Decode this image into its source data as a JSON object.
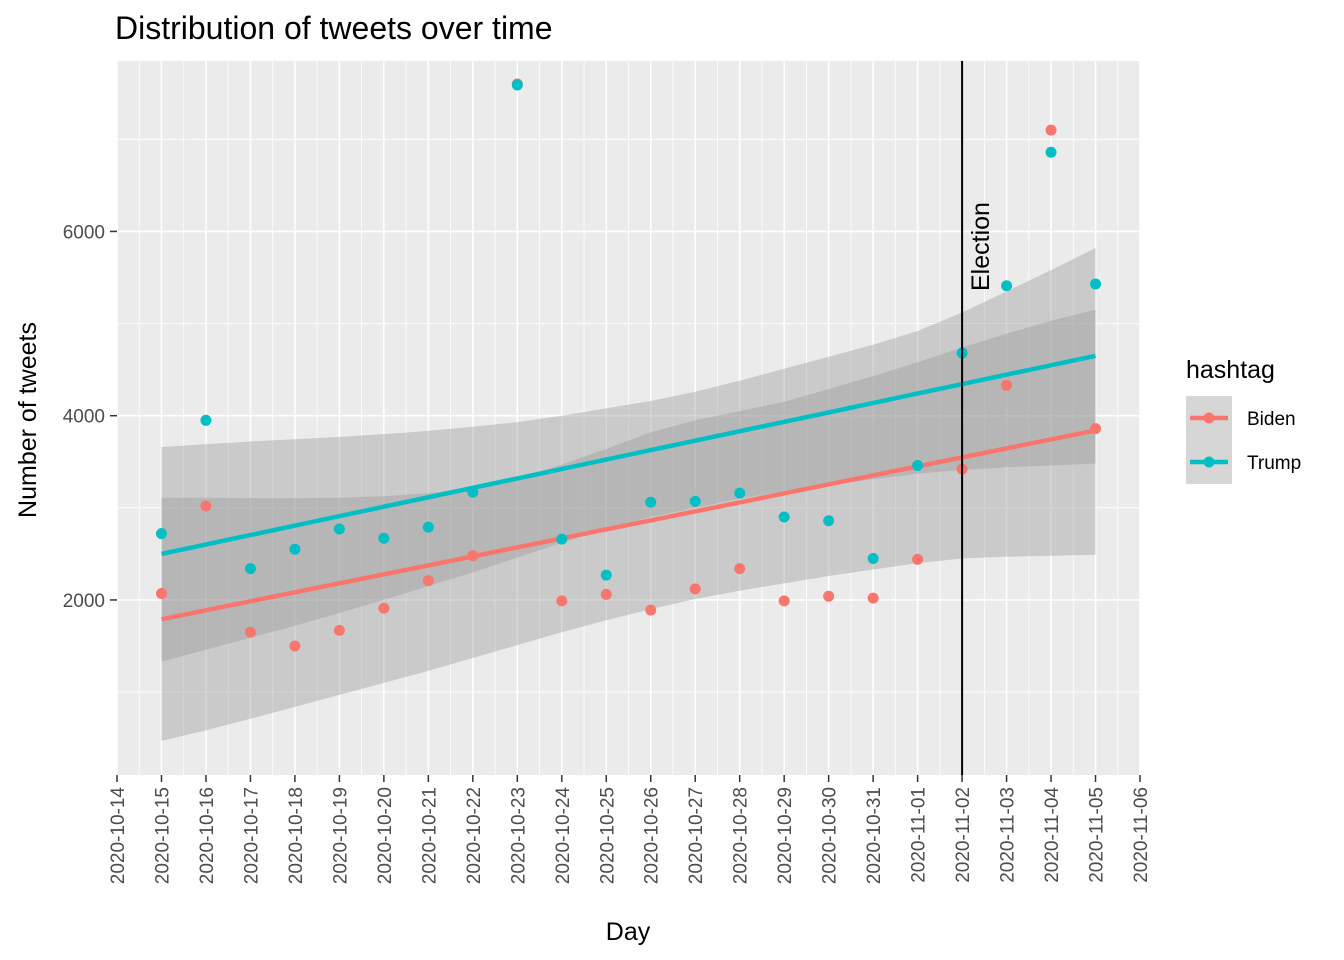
{
  "chart_data": {
    "type": "scatter",
    "title": "Distribution of tweets over time",
    "xlabel": "Day",
    "ylabel": "Number of tweets",
    "x_ticks": [
      "2020-10-14",
      "2020-10-15",
      "2020-10-16",
      "2020-10-17",
      "2020-10-18",
      "2020-10-19",
      "2020-10-20",
      "2020-10-21",
      "2020-10-22",
      "2020-10-23",
      "2020-10-24",
      "2020-10-25",
      "2020-10-26",
      "2020-10-27",
      "2020-10-28",
      "2020-10-29",
      "2020-10-30",
      "2020-10-31",
      "2020-11-01",
      "2020-11-02",
      "2020-11-03",
      "2020-11-04",
      "2020-11-05",
      "2020-11-06"
    ],
    "xlim": [
      "2020-10-14",
      "2020-11-06"
    ],
    "y_ticks": [
      2000,
      4000,
      6000
    ],
    "ylim": [
      100,
      7850
    ],
    "grid": true,
    "legend": {
      "title": "hashtag",
      "position": "right"
    },
    "x": [
      "2020-10-15",
      "2020-10-16",
      "2020-10-17",
      "2020-10-18",
      "2020-10-19",
      "2020-10-20",
      "2020-10-21",
      "2020-10-22",
      "2020-10-23",
      "2020-10-24",
      "2020-10-25",
      "2020-10-26",
      "2020-10-27",
      "2020-10-28",
      "2020-10-29",
      "2020-10-30",
      "2020-10-31",
      "2020-11-01",
      "2020-11-02",
      "2020-11-03",
      "2020-11-04",
      "2020-11-05"
    ],
    "series": [
      {
        "name": "Biden",
        "color": "#F8766D",
        "values": [
          2070,
          3020,
          1650,
          1500,
          1670,
          1910,
          2210,
          2480,
          7600,
          1990,
          2060,
          1890,
          2120,
          2340,
          1990,
          2040,
          2020,
          2440,
          3420,
          4330,
          7100,
          3860
        ],
        "trend": {
          "start": 1790,
          "end": 3840
        },
        "band_lower": [
          470,
          585,
          710,
          840,
          970,
          1100,
          1230,
          1370,
          1510,
          1650,
          1780,
          1900,
          2010,
          2100,
          2180,
          2260,
          2330,
          2400,
          2450,
          2470,
          2480,
          2490
        ],
        "band_upper": [
          3110,
          3110,
          3105,
          3105,
          3110,
          3125,
          3160,
          3210,
          3310,
          3470,
          3640,
          3820,
          3950,
          4050,
          4150,
          4290,
          4430,
          4580,
          4740,
          4890,
          5030,
          5150
        ]
      },
      {
        "name": "Trump",
        "color": "#00BFC4",
        "values": [
          2720,
          3950,
          2340,
          2550,
          2770,
          2670,
          2790,
          3170,
          7590,
          2660,
          2270,
          3060,
          3070,
          3160,
          2900,
          2860,
          2450,
          3460,
          4680,
          5410,
          6860,
          5430
        ],
        "trend": {
          "start": 2500,
          "end": 4650
        },
        "band_lower": [
          1330,
          1460,
          1590,
          1720,
          1860,
          2000,
          2150,
          2300,
          2460,
          2620,
          2780,
          2900,
          3000,
          3100,
          3180,
          3250,
          3310,
          3370,
          3410,
          3440,
          3460,
          3480
        ],
        "band_upper": [
          3660,
          3690,
          3720,
          3745,
          3770,
          3800,
          3835,
          3880,
          3930,
          4000,
          4080,
          4160,
          4260,
          4380,
          4510,
          4640,
          4770,
          4920,
          5120,
          5350,
          5580,
          5820
        ]
      }
    ],
    "annotations": [
      {
        "type": "vline",
        "x": "2020-11-02",
        "label": "Election",
        "color": "#000000"
      }
    ],
    "band_color": "#999999"
  }
}
